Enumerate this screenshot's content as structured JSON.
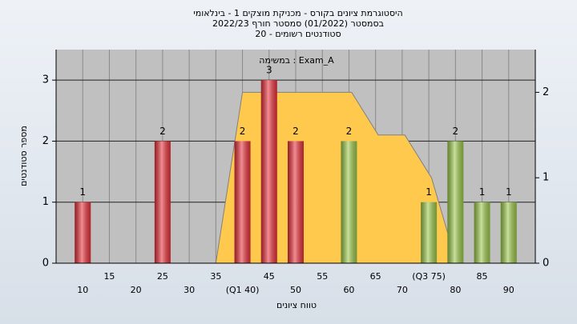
{
  "chart_data": {
    "type": "bar",
    "title_lines": [
      "היסטוגרמת ציונים בקורס - מכניקת מוצקים 1 - בינלאומי",
      "בסמסטר  (01/2022)  סמסטר חורף 2022/23",
      "20 - סטודנטים רשומים"
    ],
    "annotation": "במשימה : Exam_A",
    "xlabel": "טווח ציונים",
    "ylabel": "מספר סטודנטים",
    "x": [
      10,
      25,
      40,
      45,
      50,
      60,
      75,
      80,
      85,
      90
    ],
    "series": [
      {
        "type": "bar",
        "values": [
          1,
          2,
          2,
          3,
          2,
          2,
          1,
          2,
          1,
          1
        ],
        "colors": [
          "#e8303a",
          "#e8303a",
          "#e8303a",
          "#e8303a",
          "#e8303a",
          "#9cc84a",
          "#9cc84a",
          "#9cc84a",
          "#9cc84a",
          "#9cc84a"
        ]
      },
      {
        "type": "area",
        "axis": "y2",
        "color": "#ffc94d",
        "line_color": "#808080",
        "x": [
          35,
          40,
          60.5,
          65.5,
          70.5,
          75.5,
          78.8
        ],
        "values": [
          0,
          2,
          2,
          1.5,
          1.5,
          1,
          0.3
        ]
      }
    ],
    "xlim": [
      5,
      95
    ],
    "xticks": [
      {
        "value": 10,
        "label": "10"
      },
      15,
      20,
      25,
      30,
      35,
      {
        "value": 40,
        "label": "(Q1 40)"
      },
      45,
      50,
      55,
      60,
      65,
      70,
      {
        "value": 75,
        "label": "(Q3 75)"
      },
      80,
      85,
      90
    ],
    "ylim": [
      0,
      3.5
    ],
    "yticks": [
      0,
      1,
      2,
      3
    ],
    "y2lim": [
      0,
      2.5
    ],
    "y2ticks": [
      0,
      1,
      2
    ],
    "grid": true
  }
}
